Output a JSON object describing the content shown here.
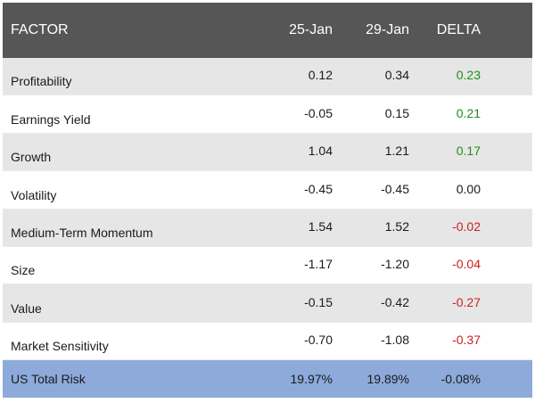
{
  "columns": {
    "factor": "FACTOR",
    "date1": "25-Jan",
    "date2": "29-Jan",
    "delta": "DELTA"
  },
  "rows": [
    {
      "factor": "Profitability",
      "date1": "0.12",
      "date2": "0.34",
      "delta": "0.23",
      "sign": "pos"
    },
    {
      "factor": "Earnings Yield",
      "date1": "-0.05",
      "date2": "0.15",
      "delta": "0.21",
      "sign": "pos"
    },
    {
      "factor": "Growth",
      "date1": "1.04",
      "date2": "1.21",
      "delta": "0.17",
      "sign": "pos"
    },
    {
      "factor": "Volatility",
      "date1": "-0.45",
      "date2": "-0.45",
      "delta": "0.00",
      "sign": "zero"
    },
    {
      "factor": "Medium-Term Momentum",
      "date1": "1.54",
      "date2": "1.52",
      "delta": "-0.02",
      "sign": "neg"
    },
    {
      "factor": "Size",
      "date1": "-1.17",
      "date2": "-1.20",
      "delta": "-0.04",
      "sign": "neg"
    },
    {
      "factor": "Value",
      "date1": "-0.15",
      "date2": "-0.42",
      "delta": "-0.27",
      "sign": "neg"
    },
    {
      "factor": "Market Sensitivity",
      "date1": "-0.70",
      "date2": "-1.08",
      "delta": "-0.37",
      "sign": "neg"
    }
  ],
  "total": {
    "label": "US Total Risk",
    "date1": "19.97%",
    "date2": "19.89%",
    "delta": "-0.08%"
  },
  "colors": {
    "positive": "#1e8f1e",
    "negative": "#cc1f1f",
    "header_bg": "#565656",
    "total_bg": "#8eaadb"
  }
}
